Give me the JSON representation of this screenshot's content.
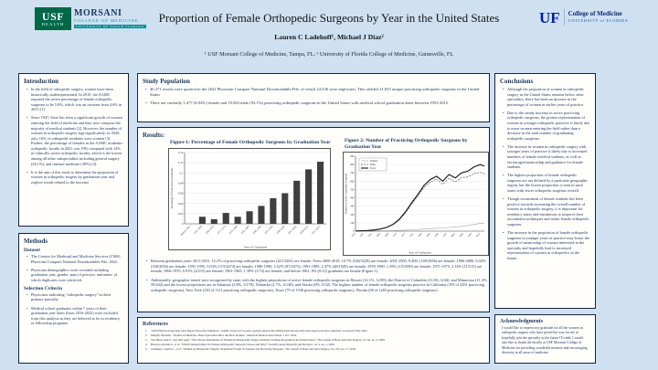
{
  "colors": {
    "background": "#cfe1f1",
    "box_border": "#16223c",
    "accent_navy": "#17365d",
    "bar_color": "#3f3f3f",
    "usf_green": "#006747",
    "usf_teal": "#008c95",
    "uf_blue": "#0021a5"
  },
  "header": {
    "title": "Proportion of Female Orthopedic Surgeons by Year in the United States",
    "authors": "Lauren C Ladehoff¹, Michael J Diaz²",
    "affiliations": "¹ USF Morsani College of Medicine, Tampa, FL; ² University of Florida College of Medicine, Gainesville, FL",
    "usf_logo": {
      "abbr": "USF",
      "sub": "HEALTH",
      "name": "MORSANI",
      "line2": "COLLEGE OF MEDICINE",
      "line3": "UNIVERSITY OF SOUTH FLORIDA"
    },
    "uf_logo": {
      "abbr": "UF",
      "line1": "College of Medicine",
      "line2": "UNIVERSITY of FLORIDA"
    }
  },
  "intro": {
    "heading": "Introduction",
    "bullets": [
      "In the field of orthopedic surgery, women have been historically underrepresented. In 2019, the AAMC reported the active percentage of female orthopedic surgeons to be 5.8%, which was an increase from 4.6% in 2015 [1].",
      "Since 1947, there has been a significant growth of women entering the field of medicine and they now compose the majority of medical students [2]. However, the number of women in orthopedic surgery lags significantly; in 2020, only 16% of orthopedic residents were women [3]. Further, the percentage of females in the AAMC academic orthopedic faculty in 2021 was 19% compared with 14% of clinically active orthopedic faculty, which is the lowest among all other subspecialties including general surgery (26.1%), and internal medicine (39%) [4].",
      "It is the aim of this study to determine the proportion of women in orthopedic surgery by graduation year and explore trends related to the increase."
    ]
  },
  "methods": {
    "heading": "Methods",
    "dataset_label": "Dataset",
    "dataset_bullets": [
      "The Centers for Medicaid and Medicare Services (CMS) Physician Compare National Downloadable File, 2022.",
      "Physician demographics were recorded including graduation year, gender, state of practice, and name, of which duplicates were retrieved."
    ],
    "selection_heading": "Selection Criteria",
    "selection_bullets": [
      "Physicians indicating \"orthopedic surgery\" as their primary specialty",
      "Medical school graduates within 7 years of their graduation year dates (from 2016-2022) were excluded from this analysis as they are believed to be in residency or fellowship programs."
    ]
  },
  "study_population": {
    "heading": "Study Population",
    "bullets": [
      "46,371 results were queried in the 2022 Physician Compare National Downloadable File, of which 24,536 were duplicates. This yielded 21,835 unique practicing orthopedic surgeons in the United States",
      "There are currently 1,477 (6.92%) female and 19,843 male (93.1%) practicing orthopedic surgeons in the United States with medical school graduation dates between 1953-2015."
    ]
  },
  "results": {
    "heading": "Results:",
    "bullets": [
      "Between graduation years 2011-2015, 12.2% of practicing orthopedic surgeons (421/3461) are female. From 2006-2010, 10.7% (346/3228) are female; 2001-2005, 8.46% (169/2656) are female; 1996-2000, 6.02% (160/2656) are female; 1991-1995, 5.03% (115/2674) are female; 1986-1990, 3.52% (87/2475); 1981-1985, 2.47% (48/1945) are female; 1976-1980, 1.39% (15/1090) are female; 1971-1975, 2.14% (11/515) are female; 1966-1970, 0.91% (2/215) are female; 1961-1965, 1.39% (1/72) are female; and before 1961, 0% (0/12) graduates are female (Figure 1).",
      "Additionally, geographic trends were recognized by state, with the highest proportions of active female orthopedic surgeons in Hawaii (14.1%, 12/85), the District of Columbia (11.6%, 6/44), and Minnesota (11.3%, 59/442) and the lowest proportions are in Arkansas (2.8%, 5/178), Nebraska (2.7%, 4/148), and Alaska (0%, 0/32). The highest number of female orthopedic surgeons practice in California (193 of 3291 practicing orthopedic surgeons), New York (130 of 1111 practicing orthopedic surgeons), Texas (79 of 1536 practicing orthopedic surgeons), Florida (68 of 1283 practicing orthopedic surgeons)."
    ]
  },
  "references": {
    "heading": "References",
    "items": [
      "\"2020 Physician Specialty Data Report Executive Summary.\" AAMC, https://www.aamc.org/data-reports/data/2020-physician-specialty-data-report-executive-summary. Accessed 9 July 2022.",
      "Murphy, Brendan. \"Women in Medicine: These Specialties Have the Most Women.\" American Medical Association, 1 Oct. 2019.",
      "Van Heest, Ann E., and Julie Agel. \"The Uneven Distribution of Women in Orthopaedic Surgery Resident Training Programs in the United States.\" The Journal of Bone and Joint Surgery, vol. 91, no. 2, 2009.",
      "Bratescu, Rachel A., et al. \"Which Subspecialties Do Female Orthopaedic Surgeons Choose and Why?\" JAAOS Global Research and Reviews, vol. 4, no. 1, 2020.",
      "Chambers, Caitlin C., et al. \"Women in Orthopaedic Surgery: Population Trends in Trainees and Practicing Surgeons.\" The Journal of Bone and Joint Surgery, vol. 100, no. 17, 2018."
    ]
  },
  "conclusions": {
    "heading": "Conclusions",
    "bullets": [
      "Although the proportion of women in orthopedic surgery in the United States remains below other specialties, there has been an increase in the percentage of women in earlier years of practice.",
      "Due to the steady increase in active practicing orthopedic surgeons, the greater representation of women in younger orthopedic practices is likely due to more women entering the field rather than a decrease in the total number of graduating orthopedic surgeons.",
      "The increase in women in orthopedic surgery with younger years of practice is likely due to increased numbers of female medical students, as well as encouraged mentorship and guidance for female students.",
      "The highest proportion of female orthopedic surgeons are not defined by a particular geographic region, but the lowest proportion is seen in rural states with fewer orthopedic surgeons overall.",
      "Though recruitment of female students has been positive towards increasing the overall number of women in orthopedic surgery, it is important for residency states and institutions to improve their recruitment techniques and retain female orthopedic surgeons.",
      "The increase in the proportion of female orthopedic surgeons in younger years of practice may foster the growth of mentorship of women interested in the specialty and hopefully lead to increased representation of women in orthopedics in the future."
    ]
  },
  "acknowledgments": {
    "heading": "Acknowledgments",
    "text": "I would like to express my gratitude for all the women in orthopedic surgery who have paved the way for me to hopefully join the specialty in the future! To add, I would also like to thank the faculty at USF Morsani College of Medicine for providing wonderful mentors and encouraging diversity in all areas of medicine."
  },
  "chart_data": [
    {
      "type": "bar",
      "title": "Figure 1: Percentage of Female Orthopedic Surgeons by Graduation Year",
      "categories": [
        "Before 1961",
        "1961-1965",
        "1966-1970",
        "1971-1975",
        "1976-1980",
        "1981-1985",
        "1986-1990",
        "1991-1995",
        "1996-2000",
        "2001-2005",
        "2006-2010",
        "2011-2015"
      ],
      "values": [
        0,
        0.0139,
        0.0091,
        0.0214,
        0.0139,
        0.0247,
        0.0352,
        0.0503,
        0.0602,
        0.0846,
        0.107,
        0.122
      ],
      "xlabel": "Year of Graduation",
      "ylabel": "Percentage of Total Active Graduates",
      "ylim": [
        0,
        0.14
      ],
      "yticks": [
        0,
        0.02,
        0.04,
        0.06,
        0.08,
        0.1,
        0.12,
        0.14
      ],
      "grid": true,
      "bar_color": "#3f3f3f"
    },
    {
      "type": "line",
      "title": "Figure 2: Number of Practicing Orthopedic Surgeons by Graduation Year",
      "x": [
        1953,
        1956,
        1959,
        1962,
        1965,
        1968,
        1971,
        1974,
        1977,
        1980,
        1983,
        1986,
        1989,
        1992,
        1995,
        1998,
        2001,
        2004,
        2007,
        2010,
        2013,
        2015
      ],
      "series": [
        {
          "name": "Female",
          "color": "#a6a6a6",
          "dash": "",
          "width": 0.6,
          "values": [
            0,
            0,
            0,
            1,
            1,
            2,
            4,
            8,
            12,
            16,
            20,
            25,
            30,
            34,
            38,
            44,
            50,
            58,
            68,
            80,
            92,
            95
          ]
        },
        {
          "name": "Male",
          "color": "#595959",
          "dash": "2,1.3",
          "width": 0.7,
          "values": [
            2,
            4,
            8,
            13,
            24,
            43,
            76,
            132,
            218,
            324,
            420,
            525,
            590,
            626,
            562,
            636,
            590,
            642,
            652,
            690,
            708,
            685
          ]
        },
        {
          "name": "Total",
          "color": "#111111",
          "dash": "",
          "width": 1.1,
          "values": [
            2,
            4,
            8,
            14,
            25,
            45,
            80,
            140,
            230,
            340,
            440,
            550,
            620,
            660,
            600,
            680,
            640,
            700,
            720,
            770,
            800,
            780
          ]
        }
      ],
      "xticks": [
        1953,
        1957,
        1961,
        1965,
        1969,
        1973,
        1977,
        1981,
        1985,
        1989,
        1993,
        1997,
        2001,
        2005,
        2009,
        2013
      ],
      "xlabel": "Year of Graduation",
      "ylabel": "Number of Active Orthopedic Surgeons",
      "ylim": [
        0,
        900
      ],
      "yticks": [
        0,
        100,
        200,
        300,
        400,
        500,
        600,
        700,
        800,
        900
      ],
      "grid": true,
      "legend_position": "top-left"
    }
  ]
}
